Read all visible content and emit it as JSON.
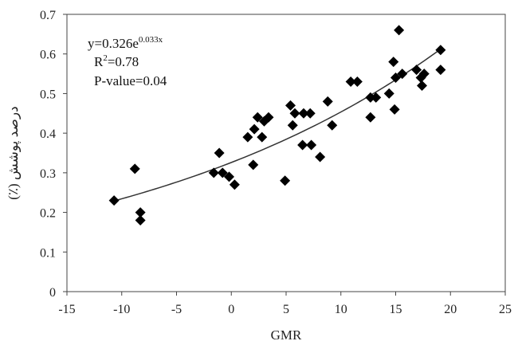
{
  "chart_data": {
    "type": "scatter",
    "title": "",
    "xlabel": "GMR",
    "ylabel": "درصد پوشش (٪)",
    "xlim": [
      -15,
      25
    ],
    "ylim": [
      0,
      0.7
    ],
    "x_ticks": [
      "-15",
      "-10",
      "-5",
      "0",
      "5",
      "10",
      "15",
      "20",
      "25"
    ],
    "y_ticks": [
      "0",
      "0.1",
      "0.2",
      "0.3",
      "0.4",
      "0.5",
      "0.6",
      "0.7"
    ],
    "grid": false,
    "legend": "none",
    "series": [
      {
        "marker": "diamond",
        "color": "#000000",
        "points": [
          [
            -10.7,
            0.23
          ],
          [
            -8.8,
            0.31
          ],
          [
            -8.3,
            0.2
          ],
          [
            -8.3,
            0.18
          ],
          [
            -1.6,
            0.3
          ],
          [
            -1.1,
            0.35
          ],
          [
            -0.8,
            0.3
          ],
          [
            -0.2,
            0.29
          ],
          [
            0.3,
            0.27
          ],
          [
            1.5,
            0.39
          ],
          [
            2.0,
            0.32
          ],
          [
            2.1,
            0.41
          ],
          [
            2.4,
            0.44
          ],
          [
            2.8,
            0.39
          ],
          [
            3.0,
            0.43
          ],
          [
            3.4,
            0.44
          ],
          [
            4.9,
            0.28
          ],
          [
            5.4,
            0.47
          ],
          [
            5.6,
            0.42
          ],
          [
            5.8,
            0.45
          ],
          [
            6.5,
            0.37
          ],
          [
            6.6,
            0.45
          ],
          [
            7.2,
            0.45
          ],
          [
            7.3,
            0.37
          ],
          [
            8.1,
            0.34
          ],
          [
            8.8,
            0.48
          ],
          [
            9.2,
            0.42
          ],
          [
            10.9,
            0.53
          ],
          [
            11.5,
            0.53
          ],
          [
            12.7,
            0.44
          ],
          [
            12.7,
            0.49
          ],
          [
            13.2,
            0.49
          ],
          [
            14.4,
            0.5
          ],
          [
            14.8,
            0.58
          ],
          [
            14.9,
            0.46
          ],
          [
            15.0,
            0.54
          ],
          [
            15.3,
            0.66
          ],
          [
            15.6,
            0.55
          ],
          [
            16.9,
            0.56
          ],
          [
            17.3,
            0.54
          ],
          [
            17.4,
            0.52
          ],
          [
            17.6,
            0.55
          ],
          [
            19.1,
            0.61
          ],
          [
            19.1,
            0.56
          ]
        ]
      }
    ],
    "trendline": {
      "type": "exponential",
      "a": 0.326,
      "b": 0.033,
      "x_range": [
        -10.7,
        19.1
      ]
    },
    "annotations": {
      "equation_base": "y=0.326e",
      "equation_exp": "0.033x",
      "r2_prefix": "R",
      "r2_sup": "2",
      "r2_value": "=0.78",
      "p_value": "P-value=0.04"
    }
  }
}
